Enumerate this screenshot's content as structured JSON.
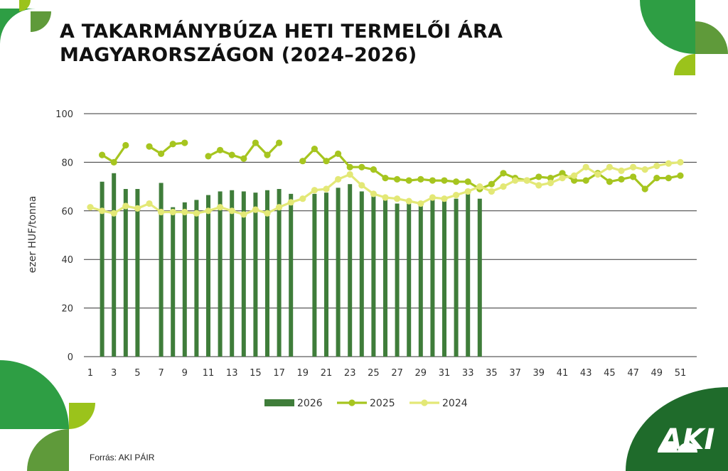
{
  "header": {
    "title_line1": "A TAKARMÁNYBÚZA HETI TERMELŐI ÁRA",
    "title_line2": "MAGYARORSZÁGON (2024–2026)"
  },
  "footer": {
    "source": "Forrás: AKI PÁIR"
  },
  "logo": {
    "text": "AKI"
  },
  "colors": {
    "s2026": "#3f7d3a",
    "s2025": "#a6c51f",
    "s2024": "#e3e876",
    "grid": "#333333",
    "deco_green": "#2e9e44",
    "deco_dark": "#1f6b2b",
    "deco_lime": "#9bc31b",
    "deco_olive": "#5f9a3a"
  },
  "chart_data": {
    "type": "bar+line",
    "ylabel": "ezer HUF/tonna",
    "ylim": [
      0,
      100
    ],
    "yticks": [
      0,
      20,
      40,
      60,
      80,
      100
    ],
    "xlim": [
      1,
      52
    ],
    "xticks": [
      "1",
      "3",
      "5",
      "7",
      "9",
      "11",
      "13",
      "15",
      "17",
      "19",
      "21",
      "23",
      "25",
      "27",
      "29",
      "31",
      "33",
      "35",
      "37",
      "39",
      "41",
      "43",
      "45",
      "47",
      "49",
      "51"
    ],
    "grid": true,
    "legend": "bottom",
    "series": [
      {
        "name": "2026",
        "kind": "bar",
        "color_key": "s2026",
        "points": [
          [
            2,
            72
          ],
          [
            3,
            75.5
          ],
          [
            4,
            69
          ],
          [
            5,
            69
          ],
          [
            7,
            71.5
          ],
          [
            8,
            61.5
          ],
          [
            9,
            63.5
          ],
          [
            10,
            64.5
          ],
          [
            11,
            66.5
          ],
          [
            12,
            68
          ],
          [
            13,
            68.5
          ],
          [
            14,
            68
          ],
          [
            15,
            67.5
          ],
          [
            16,
            68.5
          ],
          [
            17,
            69
          ],
          [
            18,
            67
          ],
          [
            20,
            67
          ],
          [
            21,
            67.5
          ],
          [
            22,
            69.5
          ],
          [
            23,
            71
          ],
          [
            24,
            68
          ],
          [
            25,
            66
          ],
          [
            26,
            64.5
          ],
          [
            27,
            63
          ],
          [
            28,
            63
          ],
          [
            29,
            62
          ],
          [
            30,
            65
          ],
          [
            31,
            64
          ],
          [
            32,
            65
          ],
          [
            33,
            67
          ],
          [
            34,
            65
          ]
        ]
      },
      {
        "name": "2025",
        "kind": "line",
        "color_key": "s2025",
        "segments": [
          [
            [
              2,
              83
            ],
            [
              3,
              80
            ],
            [
              4,
              87
            ]
          ],
          [
            [
              6,
              86.5
            ],
            [
              7,
              83.5
            ],
            [
              8,
              87.5
            ],
            [
              9,
              88
            ]
          ],
          [
            [
              11,
              82.5
            ],
            [
              12,
              85
            ],
            [
              13,
              83
            ],
            [
              14,
              81.5
            ],
            [
              15,
              88
            ],
            [
              16,
              83
            ],
            [
              17,
              88
            ]
          ],
          [
            [
              19,
              80.5
            ],
            [
              20,
              85.5
            ],
            [
              21,
              80.5
            ],
            [
              22,
              83.5
            ],
            [
              23,
              78
            ],
            [
              24,
              78
            ],
            [
              25,
              77
            ],
            [
              26,
              73.5
            ],
            [
              27,
              73
            ],
            [
              28,
              72.5
            ],
            [
              29,
              73
            ],
            [
              30,
              72.5
            ],
            [
              31,
              72.5
            ],
            [
              32,
              72
            ],
            [
              33,
              72
            ],
            [
              34,
              69
            ],
            [
              35,
              71
            ],
            [
              36,
              75.5
            ],
            [
              37,
              73.5
            ],
            [
              38,
              72.5
            ],
            [
              39,
              74
            ],
            [
              40,
              73.5
            ],
            [
              41,
              75.5
            ],
            [
              42,
              72.5
            ],
            [
              43,
              72.5
            ],
            [
              44,
              75.5
            ],
            [
              45,
              72
            ],
            [
              46,
              73
            ],
            [
              47,
              74
            ],
            [
              48,
              69
            ],
            [
              49,
              73.5
            ],
            [
              50,
              73.5
            ],
            [
              51,
              74.5
            ]
          ]
        ]
      },
      {
        "name": "2024",
        "kind": "line",
        "color_key": "s2024",
        "segments": [
          [
            [
              1,
              61.5
            ],
            [
              2,
              60
            ],
            [
              3,
              59
            ],
            [
              4,
              62
            ],
            [
              5,
              61
            ],
            [
              6,
              63
            ],
            [
              7,
              59.5
            ],
            [
              8,
              59.5
            ],
            [
              9,
              59.5
            ],
            [
              10,
              59
            ],
            [
              11,
              60
            ],
            [
              12,
              61.5
            ],
            [
              13,
              60
            ],
            [
              14,
              58.5
            ],
            [
              15,
              60.5
            ],
            [
              16,
              59
            ],
            [
              17,
              61.5
            ],
            [
              18,
              63.5
            ],
            [
              19,
              65
            ],
            [
              20,
              68.5
            ],
            [
              21,
              69
            ],
            [
              22,
              73
            ],
            [
              23,
              75
            ],
            [
              24,
              70.5
            ],
            [
              25,
              67
            ],
            [
              26,
              65.5
            ],
            [
              27,
              65
            ],
            [
              28,
              64
            ],
            [
              29,
              63
            ],
            [
              30,
              65.5
            ],
            [
              31,
              65
            ],
            [
              32,
              66.5
            ],
            [
              33,
              68
            ],
            [
              34,
              70
            ],
            [
              35,
              68
            ],
            [
              36,
              70
            ],
            [
              37,
              72.5
            ],
            [
              38,
              72.5
            ],
            [
              39,
              70.5
            ],
            [
              40,
              71.5
            ],
            [
              41,
              73.5
            ],
            [
              42,
              74.5
            ],
            [
              43,
              78
            ],
            [
              44,
              75
            ],
            [
              45,
              78
            ],
            [
              46,
              76.5
            ],
            [
              47,
              78
            ],
            [
              48,
              77
            ],
            [
              49,
              78.5
            ],
            [
              50,
              79.5
            ],
            [
              51,
              80
            ]
          ]
        ]
      }
    ]
  }
}
